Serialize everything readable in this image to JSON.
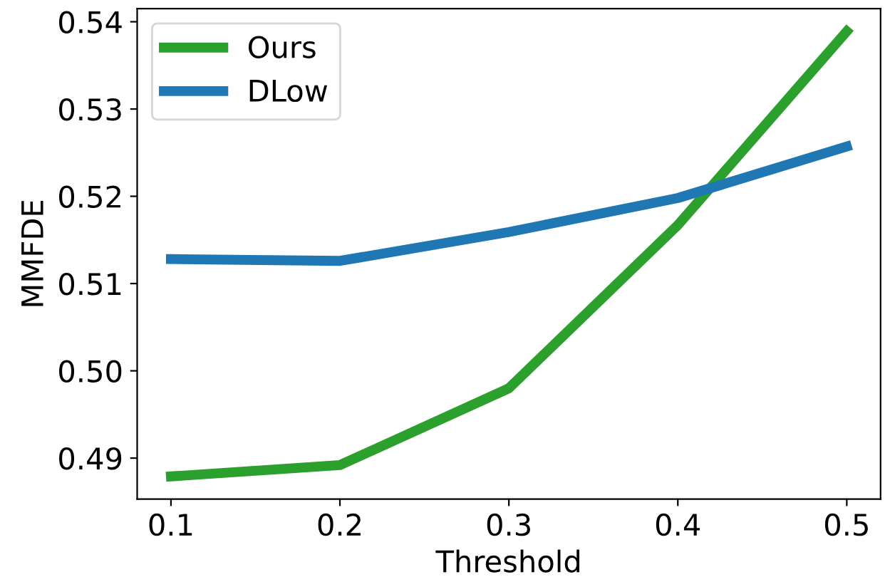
{
  "chart_data": {
    "type": "line",
    "xlabel": "Threshold",
    "ylabel": "MMFDE",
    "x": [
      0.1,
      0.2,
      0.3,
      0.4,
      0.5
    ],
    "series": [
      {
        "name": "Ours",
        "color": "#2ca02c",
        "values": [
          0.4879,
          0.4892,
          0.498,
          0.5167,
          0.5389
        ]
      },
      {
        "name": "DLow",
        "color": "#1f77b4",
        "values": [
          0.5128,
          0.5126,
          0.5159,
          0.5198,
          0.5257
        ]
      }
    ],
    "xlim": [
      0.08,
      0.52
    ],
    "ylim": [
      0.4853,
      0.5415
    ],
    "xticks": [
      0.1,
      0.2,
      0.3,
      0.4,
      0.5
    ],
    "yticks": [
      0.49,
      {
        "value": 0.5,
        "label": "0.50"
      },
      0.51,
      0.52,
      0.53,
      0.54
    ],
    "grid": false,
    "legend": "top left",
    "marker": "none",
    "line_style": "solid"
  }
}
